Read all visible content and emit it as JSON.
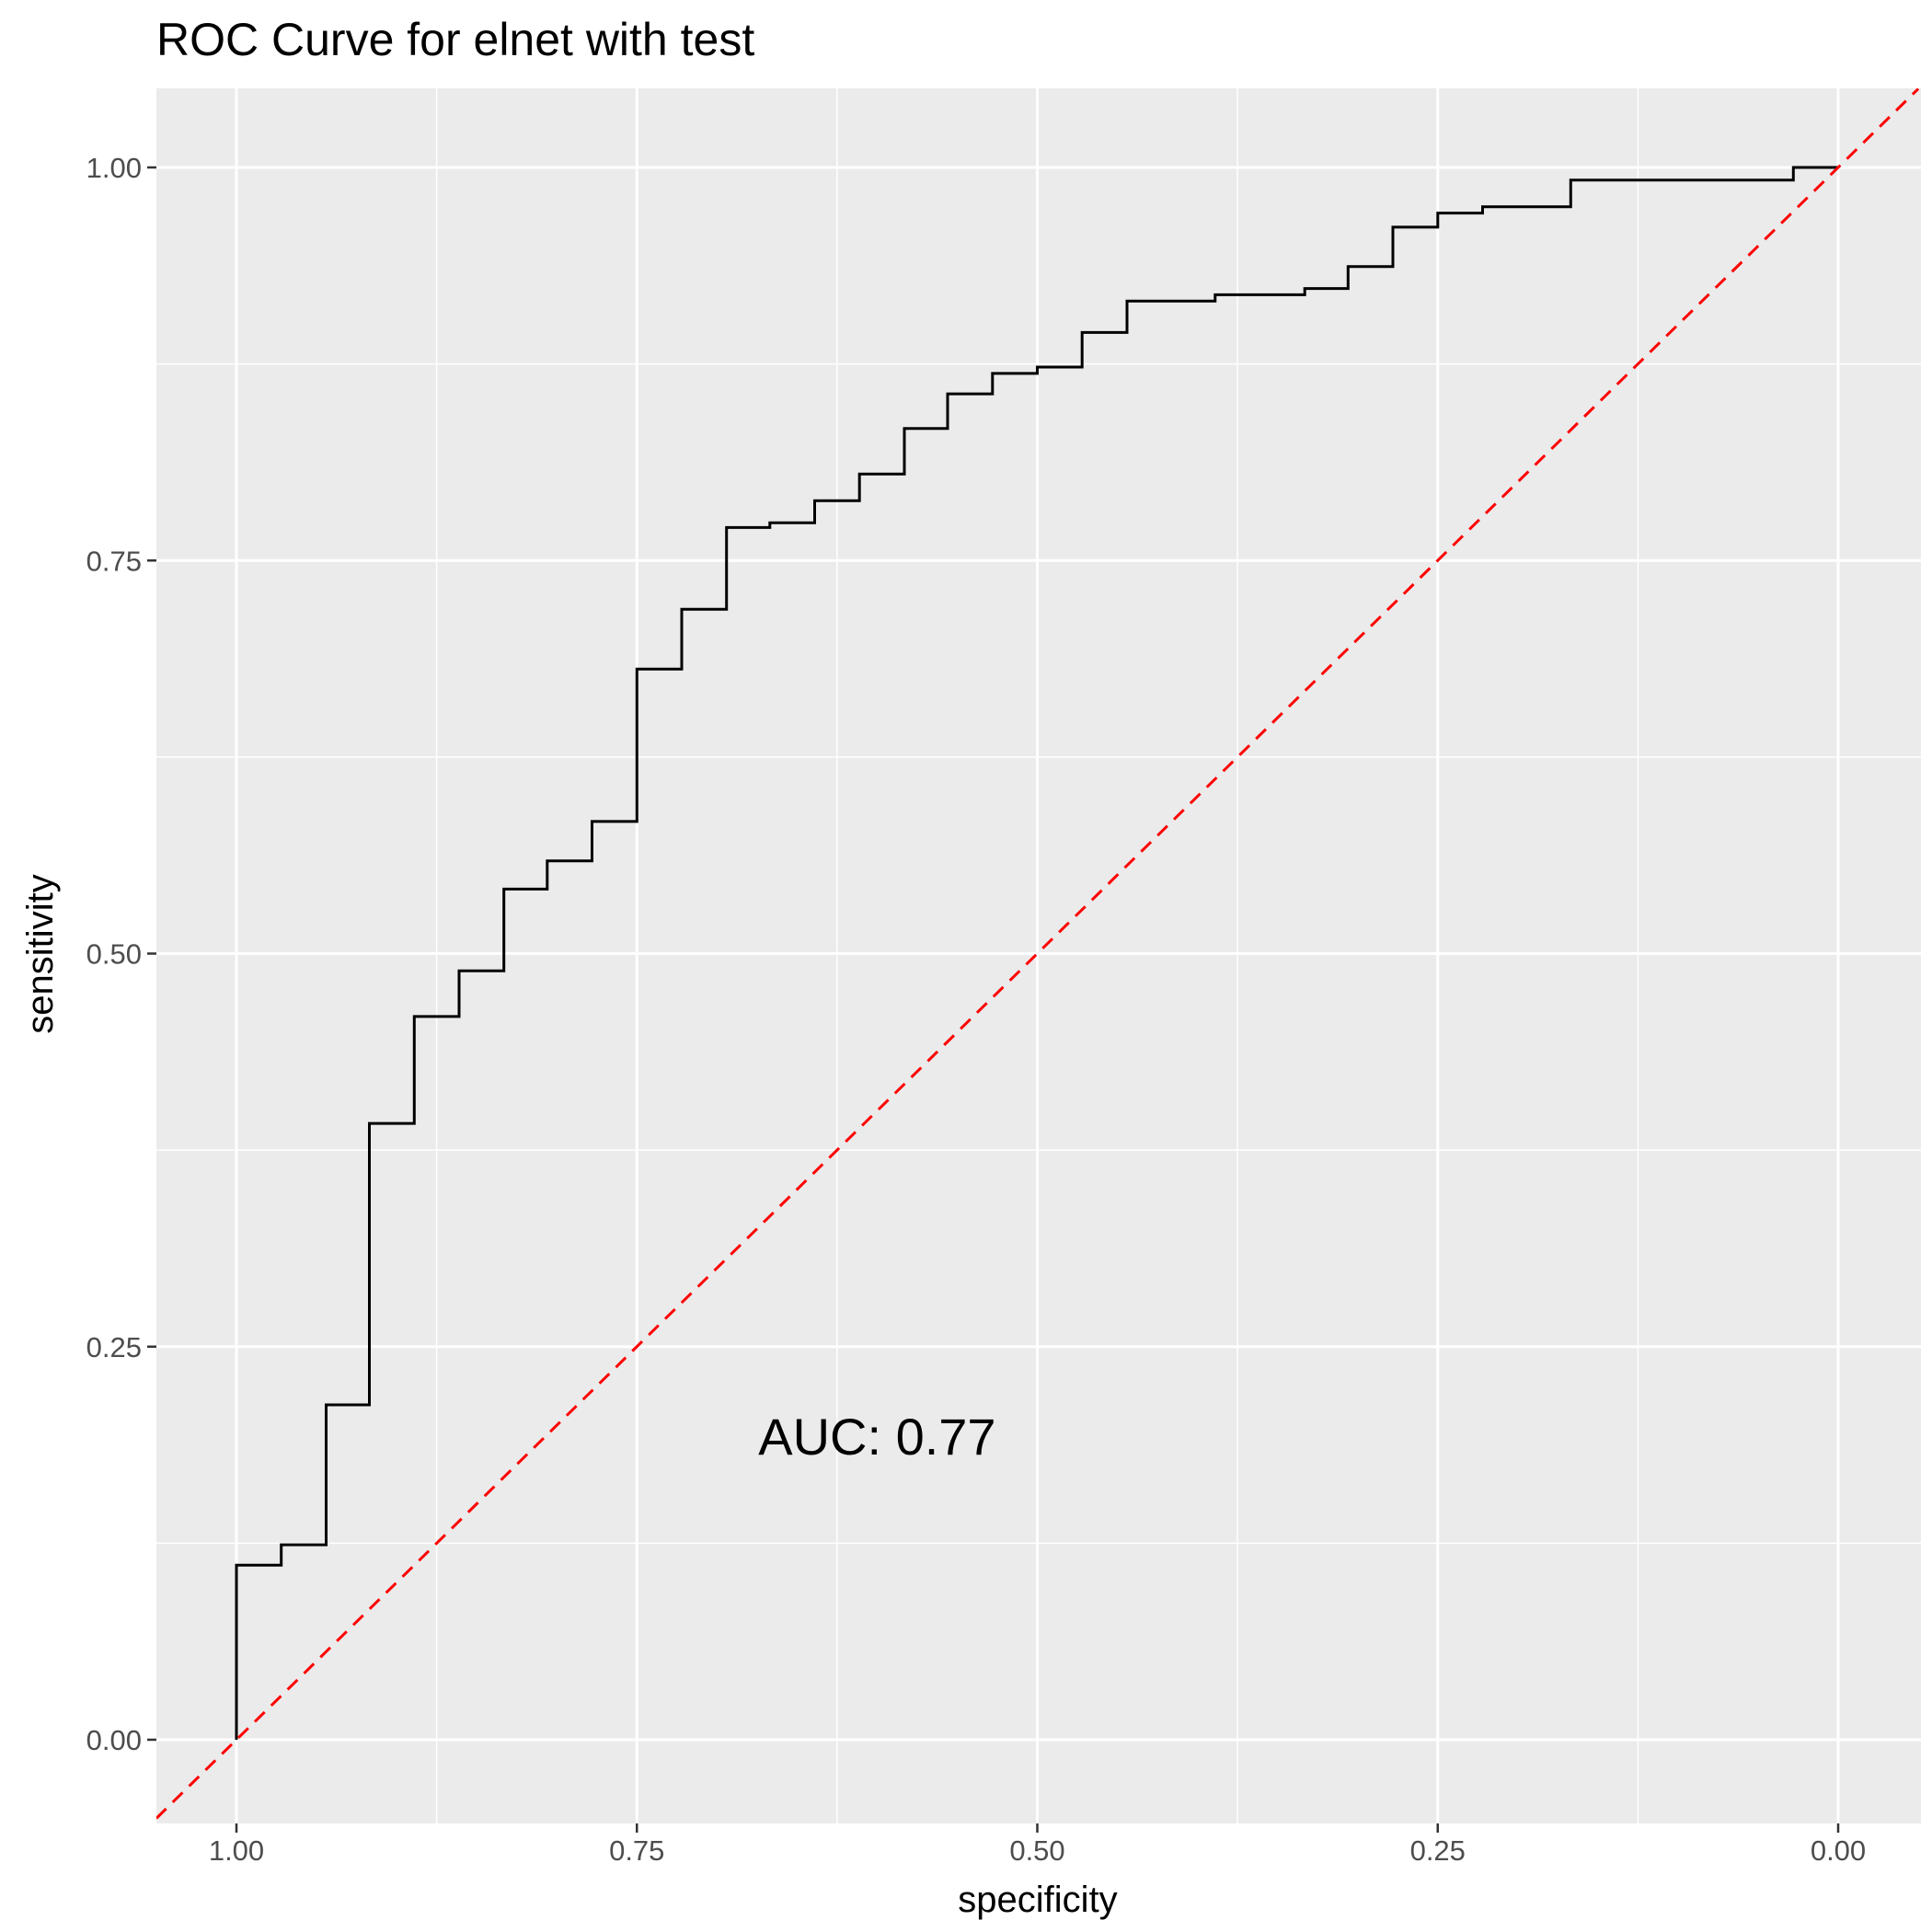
{
  "chart_data": {
    "type": "line",
    "title": "ROC Curve for elnet with test",
    "xlabel": "specificity",
    "ylabel": "sensitivity",
    "x_reversed": true,
    "xlim": [
      1.05,
      -0.05
    ],
    "ylim": [
      -0.045,
      1.05
    ],
    "x_ticks": [
      1.0,
      0.75,
      0.5,
      0.25,
      0.0
    ],
    "x_tick_labels": [
      "1.00",
      "0.75",
      "0.50",
      "0.25",
      "0.00"
    ],
    "y_ticks": [
      0.0,
      0.25,
      0.5,
      0.75,
      1.0
    ],
    "y_tick_labels": [
      "0.00",
      "0.25",
      "0.50",
      "0.75",
      "1.00"
    ],
    "grid": true,
    "background_color": "#ebebeb",
    "grid_color": "#ffffff",
    "series": [
      {
        "color": "#000000",
        "line_style": "step",
        "x": [
          1.0,
          1.0,
          0.972,
          0.972,
          0.944,
          0.944,
          0.917,
          0.917,
          0.889,
          0.889,
          0.861,
          0.861,
          0.833,
          0.833,
          0.806,
          0.806,
          0.778,
          0.778,
          0.75,
          0.75,
          0.722,
          0.722,
          0.694,
          0.694,
          0.667,
          0.667,
          0.639,
          0.639,
          0.611,
          0.611,
          0.583,
          0.583,
          0.556,
          0.556,
          0.528,
          0.528,
          0.5,
          0.5,
          0.472,
          0.472,
          0.444,
          0.444,
          0.389,
          0.389,
          0.333,
          0.333,
          0.306,
          0.306,
          0.278,
          0.278,
          0.25,
          0.25,
          0.222,
          0.222,
          0.167,
          0.167,
          0.028,
          0.028,
          0.0
        ],
        "y": [
          0.0,
          0.111,
          0.111,
          0.124,
          0.124,
          0.213,
          0.213,
          0.392,
          0.392,
          0.46,
          0.46,
          0.489,
          0.489,
          0.541,
          0.541,
          0.559,
          0.559,
          0.584,
          0.584,
          0.681,
          0.681,
          0.719,
          0.719,
          0.771,
          0.771,
          0.774,
          0.774,
          0.788,
          0.788,
          0.805,
          0.805,
          0.834,
          0.834,
          0.856,
          0.856,
          0.869,
          0.869,
          0.873,
          0.873,
          0.895,
          0.895,
          0.915,
          0.915,
          0.919,
          0.919,
          0.923,
          0.923,
          0.937,
          0.937,
          0.962,
          0.962,
          0.971,
          0.971,
          0.975,
          0.975,
          0.992,
          0.992,
          1.0,
          1.0
        ]
      },
      {
        "color": "#ff0000",
        "line_style": "dashed",
        "x": [
          1.05,
          -0.05
        ],
        "y": [
          -0.05,
          1.05
        ]
      }
    ],
    "annotations": [
      {
        "text": "AUC: 0.77",
        "x": 0.6,
        "y": 0.19
      }
    ]
  }
}
